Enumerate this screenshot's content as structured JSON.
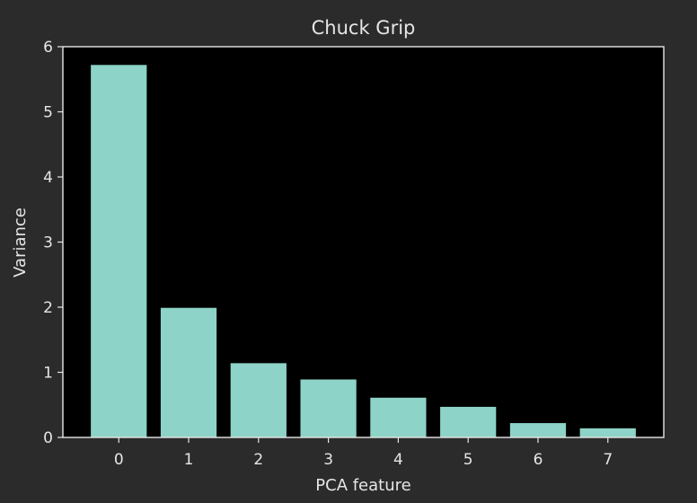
{
  "chart_data": {
    "type": "bar",
    "title": "Chuck Grip",
    "xlabel": "PCA feature",
    "ylabel": "Variance",
    "categories": [
      "0",
      "1",
      "2",
      "3",
      "4",
      "5",
      "6",
      "7"
    ],
    "values": [
      5.72,
      1.99,
      1.14,
      0.89,
      0.61,
      0.47,
      0.22,
      0.14
    ],
    "ylim": [
      0,
      6
    ],
    "xlim": [
      -0.8,
      7.8
    ],
    "yticks": [
      0,
      1,
      2,
      3,
      4,
      5,
      6
    ],
    "grid": false,
    "colors": {
      "figure_background": "#2b2b2b",
      "plot_background": "#000000",
      "bar": "#8dd3c7",
      "axis": "#e6e6e6",
      "text": "#e6e6e6"
    }
  }
}
